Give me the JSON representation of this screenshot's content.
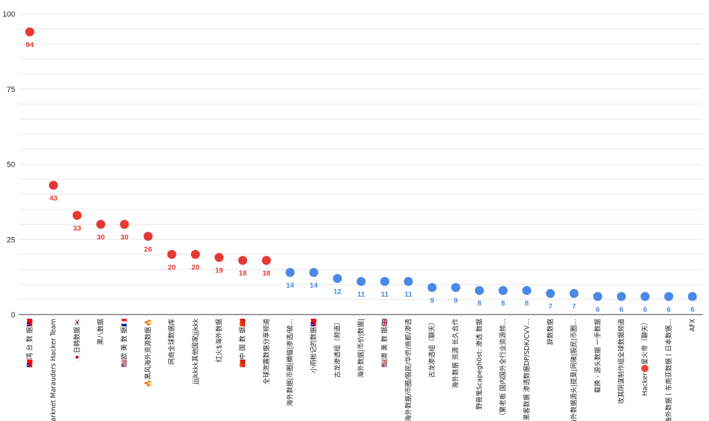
{
  "colors": {
    "high": "#E53935",
    "low": "#4A89E8",
    "grid": "#e6e6e6",
    "axis": "#333333"
  },
  "chart_data": {
    "type": "scatter",
    "title": "",
    "xlabel": "",
    "ylabel": "",
    "ylim": [
      0,
      100
    ],
    "yticks": [
      0,
      25,
      50,
      75,
      100
    ],
    "grid": true,
    "legend": "none",
    "point_labels": true,
    "categories": [
      "🇹🇼湾 台 数 据🇹🇼",
      "Darknet Marauders Hacker Team",
      "🇯🇵日韩数据🇰🇷",
      "黑八数据",
      "🇺🇸欧 美 数 据🇫🇷",
      "🔥黑风海外资源数据🔥",
      "网商全球数据库",
      "jjjjkkkk其他国家jjjkkk",
      "红火$海外数据",
      "🇨🇳中 国 数 据🇨🇳",
      "全球泄露数据分享频道",
      "海外数据|币圈|横幅|渗透/破…",
      "小雨帐记的数据🇹🇼",
      "古龙渗透组（频道）",
      "海外数据|币价|数据|",
      "🇺🇸澳 美 数 据🇬🇧",
      "海外数据/币圈/股民/华侨/商都/渗透",
      "古龙渗透组（聊天）",
      "海外数据 资源 长久合作",
      "野兽鬼Scapegh0st: 渗透 数据",
      "（繁老板 国内国外全行业资源频…",
      "黑客数据 渗透数据DP/SDK/CVV…",
      "辞数数据",
      "海外数据源头|提莫|网赌|股民|币圈…",
      "载换 - 源头数据 一手数据",
      "攻其阴谋制作组全球数据频道",
      "Hacker🔴星火帝（聊天）",
      "海外数据丨东南亚数据丨日本数据…",
      "AFX"
    ],
    "values": [
      94,
      43,
      33,
      30,
      30,
      26,
      20,
      20,
      19,
      18,
      18,
      14,
      14,
      12,
      11,
      11,
      11,
      9,
      9,
      8,
      8,
      8,
      7,
      7,
      6,
      6,
      6,
      6,
      6
    ],
    "highlight_count": 11
  }
}
